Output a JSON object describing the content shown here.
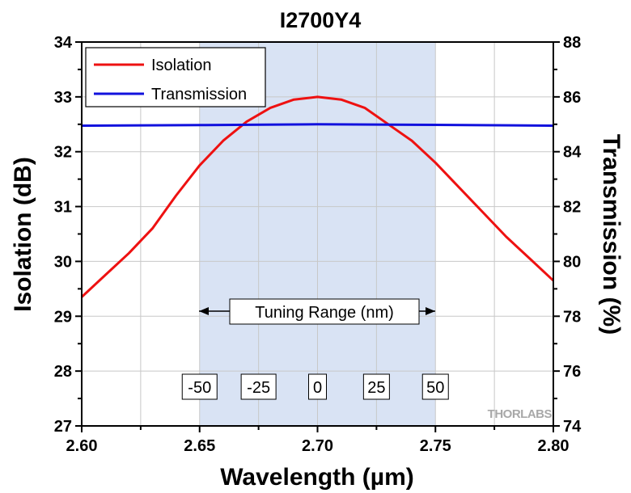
{
  "chart_data": {
    "type": "line",
    "title": "I2700Y4",
    "xlabel": "Wavelength (µm)",
    "ylabel": "Isolation (dB)",
    "y2label": "Transmission (%)",
    "xlim": [
      2.6,
      2.8
    ],
    "ylim": [
      27,
      34
    ],
    "y2lim": [
      74,
      88
    ],
    "x_ticks": [
      "2.60",
      "2.65",
      "2.70",
      "2.75",
      "2.80"
    ],
    "y_ticks": [
      "27",
      "28",
      "29",
      "30",
      "31",
      "32",
      "33",
      "34"
    ],
    "y2_ticks": [
      "74",
      "76",
      "78",
      "80",
      "82",
      "84",
      "86",
      "88"
    ],
    "grid": true,
    "legend_position": "top-left",
    "shaded_region": [
      2.65,
      2.75
    ],
    "series": [
      {
        "name": "Isolation",
        "axis": "left",
        "color": "#ee1111",
        "x": [
          2.6,
          2.61,
          2.62,
          2.63,
          2.64,
          2.65,
          2.66,
          2.67,
          2.68,
          2.69,
          2.7,
          2.71,
          2.72,
          2.73,
          2.74,
          2.75,
          2.76,
          2.77,
          2.78,
          2.79,
          2.8
        ],
        "values": [
          29.35,
          29.75,
          30.15,
          30.6,
          31.2,
          31.75,
          32.2,
          32.55,
          32.8,
          32.95,
          33.0,
          32.95,
          32.8,
          32.5,
          32.2,
          31.8,
          31.35,
          30.9,
          30.45,
          30.05,
          29.65
        ]
      },
      {
        "name": "Transmission",
        "axis": "right",
        "color": "#1111dd",
        "x": [
          2.6,
          2.65,
          2.7,
          2.75,
          2.8
        ],
        "values": [
          84.95,
          84.97,
          85.0,
          84.98,
          84.95
        ]
      }
    ],
    "annotation": {
      "text": "Tuning Range (nm)",
      "tuning_labels": [
        {
          "label": "-50",
          "x": 2.65
        },
        {
          "label": "-25",
          "x": 2.675
        },
        {
          "label": "0",
          "x": 2.7
        },
        {
          "label": "25",
          "x": 2.725
        },
        {
          "label": "50",
          "x": 2.75
        }
      ]
    },
    "logo": "THORLABS"
  },
  "colors": {
    "shade": "#d9e3f4",
    "grid": "#c8c8c8",
    "axis": "#000000"
  }
}
